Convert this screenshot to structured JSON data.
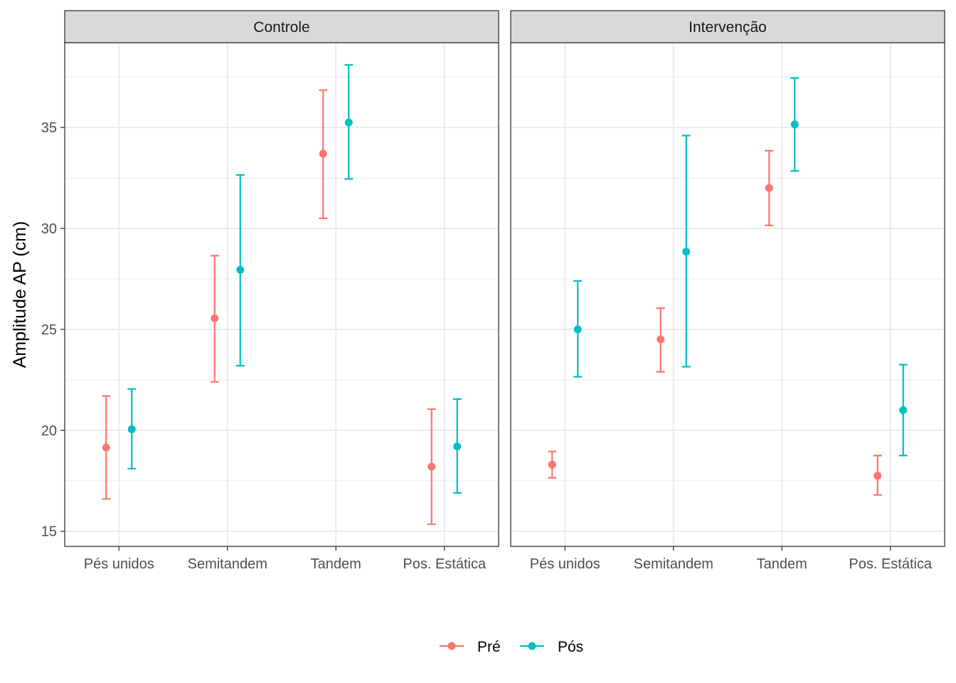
{
  "chart_data": {
    "type": "errorbar",
    "ylabel": "Amplitude AP (cm)",
    "xlabel": "",
    "ylim": [
      14.25,
      39.2
    ],
    "yticks": [
      15,
      20,
      25,
      30,
      35
    ],
    "categories": [
      "Pés unidos",
      "Semitandem",
      "Tandem",
      "Pos. Estática"
    ],
    "series_order": [
      "Pré",
      "Pós"
    ],
    "colors": {
      "Pré": "#F8766D",
      "Pós": "#00BFC4"
    },
    "grid": true,
    "legend_position": "bottom",
    "panels": [
      {
        "title": "Controle",
        "series": [
          {
            "name": "Pré",
            "mean": [
              19.15,
              25.55,
              33.7,
              18.2
            ],
            "lower": [
              16.6,
              22.4,
              30.5,
              15.35
            ],
            "upper": [
              21.7,
              28.65,
              36.85,
              21.05
            ]
          },
          {
            "name": "Pós",
            "mean": [
              20.05,
              27.95,
              35.25,
              19.2
            ],
            "lower": [
              18.1,
              23.2,
              32.45,
              16.9
            ],
            "upper": [
              22.05,
              32.65,
              38.1,
              21.55
            ]
          }
        ]
      },
      {
        "title": "Intervenção",
        "series": [
          {
            "name": "Pré",
            "mean": [
              18.3,
              24.5,
              32.0,
              17.75
            ],
            "lower": [
              17.65,
              22.9,
              30.15,
              16.8
            ],
            "upper": [
              18.95,
              26.05,
              33.85,
              18.75
            ]
          },
          {
            "name": "Pós",
            "mean": [
              25.0,
              28.85,
              35.15,
              21.0
            ],
            "lower": [
              22.65,
              23.15,
              32.85,
              18.75
            ],
            "upper": [
              27.4,
              34.6,
              37.45,
              23.25
            ]
          }
        ]
      }
    ]
  }
}
